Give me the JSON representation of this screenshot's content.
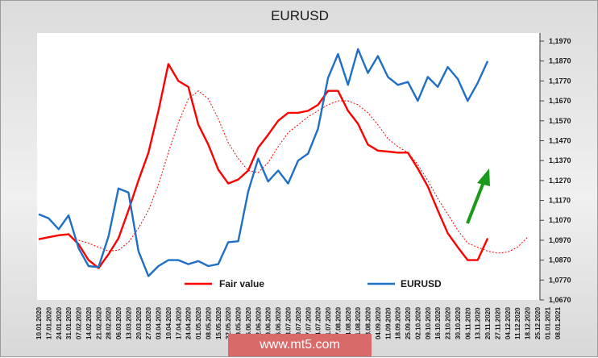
{
  "chart_data": {
    "type": "line",
    "title": "EURUSD",
    "y_ticks": [
      "1,0670",
      "1,0770",
      "1,0870",
      "1,0970",
      "1,1070",
      "1,1170",
      "1,1270",
      "1,1370",
      "1,1470",
      "1,1570",
      "1,1670",
      "1,1770",
      "1,1870",
      "1,1970"
    ],
    "ylim": [
      1.067,
      1.197
    ],
    "x_labels": [
      "10.01.2020",
      "17.01.2020",
      "24.01.2020",
      "31.01.2020",
      "07.02.2020",
      "14.02.2020",
      "21.02.2020",
      "28.02.2020",
      "06.03.2020",
      "13.03.2020",
      "20.03.2020",
      "27.03.2020",
      "03.04.2020",
      "10.04.2020",
      "17.04.2020",
      "24.04.2020",
      "01.05.2020",
      "08.05.2020",
      "15.05.2020",
      "22.05.2020",
      "29.05.2020",
      "05.06.2020",
      "12.06.2020",
      "19.06.2020",
      "26.06.2020",
      "03.07.2020",
      "10.07.2020",
      "17.07.2020",
      "24.07.2020",
      "31.07.2020",
      "07.08.2020",
      "14.08.2020",
      "21.08.2020",
      "28.08.2020",
      "04.09.2020",
      "11.09.2020",
      "18.09.2020",
      "25.09.2020",
      "02.10.2020",
      "09.10.2020",
      "16.10.2020",
      "23.10.2020",
      "30.10.2020",
      "06.11.2020",
      "13.11.2020",
      "20.11.2020",
      "27.11.2020",
      "04.12.2020",
      "11.12.2020",
      "18.12.2020",
      "25.12.2020",
      "01.01.2021",
      "08.01.2021"
    ],
    "series": [
      {
        "name": "Fair value",
        "color": "#ff0000",
        "style": "solid",
        "values": [
          1.0975,
          1.0985,
          1.0995,
          1.1,
          1.095,
          1.087,
          1.083,
          1.09,
          1.098,
          1.112,
          1.127,
          1.141,
          1.162,
          1.1855,
          1.177,
          1.174,
          1.155,
          1.145,
          1.1325,
          1.1255,
          1.1275,
          1.132,
          1.1435,
          1.15,
          1.157,
          1.161,
          1.161,
          1.162,
          1.165,
          1.172,
          1.172,
          1.162,
          1.1555,
          1.145,
          1.142,
          1.1415,
          1.141,
          1.141,
          1.133,
          1.124,
          1.112,
          1.1005,
          1.0935,
          1.087,
          1.087,
          1.098
        ]
      },
      {
        "name": "dashed",
        "color": "#ff0000",
        "style": "dashed",
        "values": [
          null,
          null,
          null,
          null,
          1.097,
          1.0955,
          1.0935,
          1.0915,
          1.092,
          1.096,
          1.103,
          1.112,
          1.125,
          1.141,
          1.156,
          1.168,
          1.172,
          1.168,
          1.158,
          1.146,
          1.138,
          1.132,
          1.131,
          1.136,
          1.144,
          1.151,
          1.155,
          1.159,
          1.162,
          1.165,
          1.167,
          1.167,
          1.165,
          1.161,
          1.155,
          1.148,
          1.144,
          1.141,
          1.135,
          1.127,
          1.118,
          1.11,
          1.102,
          1.0955,
          1.0935,
          1.0915,
          1.0905,
          1.091,
          1.0935,
          1.0985
        ]
      },
      {
        "name": "EURUSD",
        "color": "#1f6fc5",
        "style": "solid",
        "values": [
          1.11,
          1.108,
          1.1025,
          1.1095,
          1.093,
          1.084,
          1.0835,
          1.099,
          1.123,
          1.121,
          1.0915,
          1.079,
          1.084,
          1.087,
          1.087,
          1.085,
          1.0865,
          1.084,
          1.085,
          1.096,
          1.0965,
          1.1215,
          1.138,
          1.1265,
          1.132,
          1.1255,
          1.137,
          1.1405,
          1.153,
          1.1785,
          1.1905,
          1.175,
          1.193,
          1.181,
          1.1895,
          1.179,
          1.175,
          1.1765,
          1.167,
          1.179,
          1.174,
          1.184,
          1.178,
          1.167,
          1.176,
          1.187
        ]
      }
    ],
    "legend": [
      {
        "label": "Fair value",
        "color": "#ff0000"
      },
      {
        "label": "EURUSD",
        "color": "#1f6fc5"
      }
    ],
    "annotation": {
      "type": "arrow",
      "color": "#1a9a1a",
      "direction": "up-right"
    },
    "grid": false
  },
  "watermark": "www.mt5.com"
}
